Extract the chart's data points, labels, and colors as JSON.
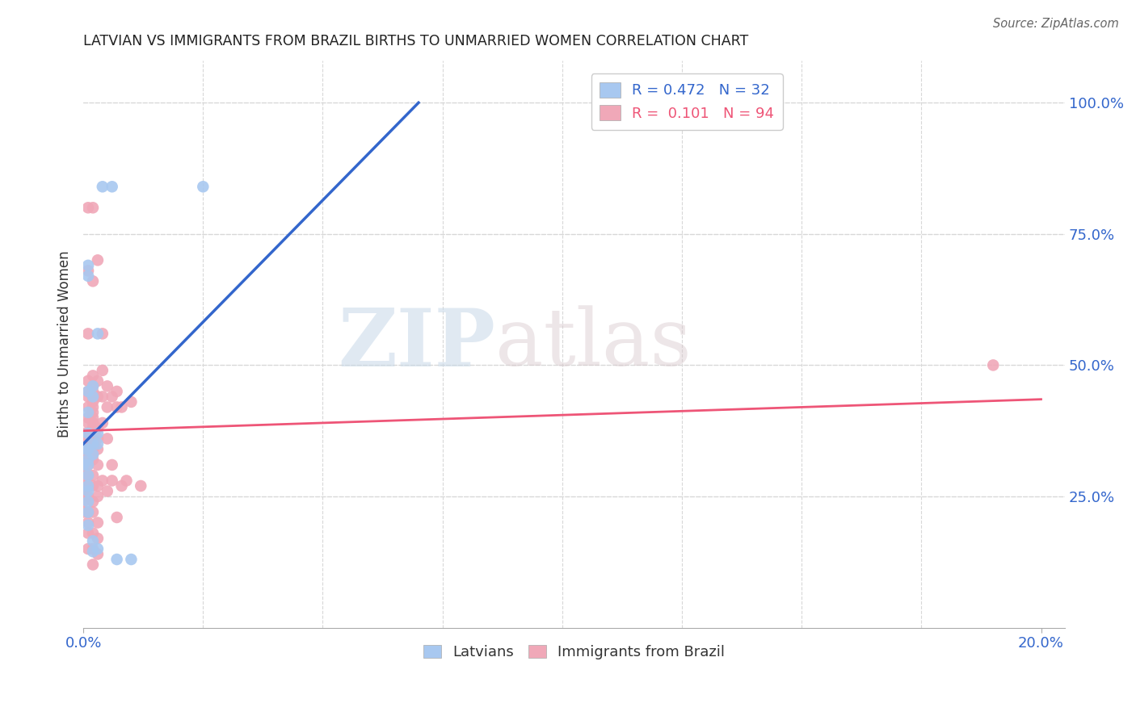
{
  "title": "LATVIAN VS IMMIGRANTS FROM BRAZIL BIRTHS TO UNMARRIED WOMEN CORRELATION CHART",
  "source": "Source: ZipAtlas.com",
  "ylabel": "Births to Unmarried Women",
  "watermark_zip": "ZIP",
  "watermark_atlas": "atlas",
  "bg_color": "#ffffff",
  "grid_color": "#d8d8d8",
  "latvian_color": "#a8c8f0",
  "brazil_color": "#f0a8b8",
  "latvian_line_color": "#3366cc",
  "brazil_line_color": "#ee5577",
  "legend_latvian_r": "0.472",
  "legend_latvian_n": "32",
  "legend_brazil_r": "0.101",
  "legend_brazil_n": "94",
  "xlim": [
    0.0,
    0.205
  ],
  "ylim": [
    0.0,
    1.08
  ],
  "yticks": [
    0.25,
    0.5,
    0.75,
    1.0
  ],
  "ytick_labels": [
    "25.0%",
    "50.0%",
    "75.0%",
    "100.0%"
  ],
  "latvian_points": [
    [
      0.0,
      0.34
    ],
    [
      0.0,
      0.31
    ],
    [
      0.001,
      0.69
    ],
    [
      0.001,
      0.67
    ],
    [
      0.001,
      0.45
    ],
    [
      0.001,
      0.41
    ],
    [
      0.001,
      0.37
    ],
    [
      0.001,
      0.34
    ],
    [
      0.001,
      0.32
    ],
    [
      0.001,
      0.31
    ],
    [
      0.001,
      0.29
    ],
    [
      0.001,
      0.27
    ],
    [
      0.001,
      0.26
    ],
    [
      0.001,
      0.24
    ],
    [
      0.001,
      0.22
    ],
    [
      0.001,
      0.195
    ],
    [
      0.002,
      0.46
    ],
    [
      0.002,
      0.44
    ],
    [
      0.002,
      0.35
    ],
    [
      0.002,
      0.33
    ],
    [
      0.002,
      0.165
    ],
    [
      0.002,
      0.145
    ],
    [
      0.003,
      0.56
    ],
    [
      0.003,
      0.37
    ],
    [
      0.003,
      0.35
    ],
    [
      0.003,
      0.15
    ],
    [
      0.004,
      0.84
    ],
    [
      0.006,
      0.84
    ],
    [
      0.007,
      0.13
    ],
    [
      0.01,
      0.13
    ],
    [
      0.025,
      0.84
    ],
    [
      0.12,
      1.0
    ]
  ],
  "brazil_points": [
    [
      0.0,
      0.37
    ],
    [
      0.0,
      0.355
    ],
    [
      0.0,
      0.345
    ],
    [
      0.0,
      0.34
    ],
    [
      0.0,
      0.33
    ],
    [
      0.0,
      0.32
    ],
    [
      0.0,
      0.31
    ],
    [
      0.0,
      0.305
    ],
    [
      0.0,
      0.295
    ],
    [
      0.0,
      0.28
    ],
    [
      0.0,
      0.27
    ],
    [
      0.0,
      0.26
    ],
    [
      0.0,
      0.24
    ],
    [
      0.0,
      0.22
    ],
    [
      0.001,
      0.8
    ],
    [
      0.001,
      0.68
    ],
    [
      0.001,
      0.56
    ],
    [
      0.001,
      0.47
    ],
    [
      0.001,
      0.45
    ],
    [
      0.001,
      0.44
    ],
    [
      0.001,
      0.42
    ],
    [
      0.001,
      0.4
    ],
    [
      0.001,
      0.39
    ],
    [
      0.001,
      0.37
    ],
    [
      0.001,
      0.36
    ],
    [
      0.001,
      0.35
    ],
    [
      0.001,
      0.34
    ],
    [
      0.001,
      0.33
    ],
    [
      0.001,
      0.32
    ],
    [
      0.001,
      0.31
    ],
    [
      0.001,
      0.29
    ],
    [
      0.001,
      0.27
    ],
    [
      0.001,
      0.25
    ],
    [
      0.001,
      0.22
    ],
    [
      0.001,
      0.2
    ],
    [
      0.001,
      0.18
    ],
    [
      0.001,
      0.15
    ],
    [
      0.002,
      0.8
    ],
    [
      0.002,
      0.66
    ],
    [
      0.002,
      0.48
    ],
    [
      0.002,
      0.46
    ],
    [
      0.002,
      0.45
    ],
    [
      0.002,
      0.44
    ],
    [
      0.002,
      0.43
    ],
    [
      0.002,
      0.42
    ],
    [
      0.002,
      0.41
    ],
    [
      0.002,
      0.4
    ],
    [
      0.002,
      0.39
    ],
    [
      0.002,
      0.38
    ],
    [
      0.002,
      0.36
    ],
    [
      0.002,
      0.35
    ],
    [
      0.002,
      0.34
    ],
    [
      0.002,
      0.33
    ],
    [
      0.002,
      0.32
    ],
    [
      0.002,
      0.29
    ],
    [
      0.002,
      0.27
    ],
    [
      0.002,
      0.24
    ],
    [
      0.002,
      0.22
    ],
    [
      0.002,
      0.18
    ],
    [
      0.002,
      0.15
    ],
    [
      0.002,
      0.12
    ],
    [
      0.003,
      0.7
    ],
    [
      0.003,
      0.47
    ],
    [
      0.003,
      0.44
    ],
    [
      0.003,
      0.38
    ],
    [
      0.003,
      0.36
    ],
    [
      0.003,
      0.34
    ],
    [
      0.003,
      0.31
    ],
    [
      0.003,
      0.27
    ],
    [
      0.003,
      0.25
    ],
    [
      0.003,
      0.2
    ],
    [
      0.003,
      0.17
    ],
    [
      0.003,
      0.14
    ],
    [
      0.004,
      0.56
    ],
    [
      0.004,
      0.49
    ],
    [
      0.004,
      0.44
    ],
    [
      0.004,
      0.39
    ],
    [
      0.004,
      0.28
    ],
    [
      0.005,
      0.46
    ],
    [
      0.005,
      0.42
    ],
    [
      0.005,
      0.36
    ],
    [
      0.005,
      0.26
    ],
    [
      0.006,
      0.44
    ],
    [
      0.006,
      0.31
    ],
    [
      0.006,
      0.28
    ],
    [
      0.007,
      0.45
    ],
    [
      0.007,
      0.42
    ],
    [
      0.007,
      0.21
    ],
    [
      0.008,
      0.42
    ],
    [
      0.008,
      0.27
    ],
    [
      0.009,
      0.28
    ],
    [
      0.01,
      0.43
    ],
    [
      0.012,
      0.27
    ],
    [
      0.19,
      0.5
    ]
  ],
  "latvian_line": [
    [
      0.0,
      0.35
    ],
    [
      0.07,
      1.0
    ]
  ],
  "brazil_line": [
    [
      0.0,
      0.375
    ],
    [
      0.2,
      0.435
    ]
  ]
}
